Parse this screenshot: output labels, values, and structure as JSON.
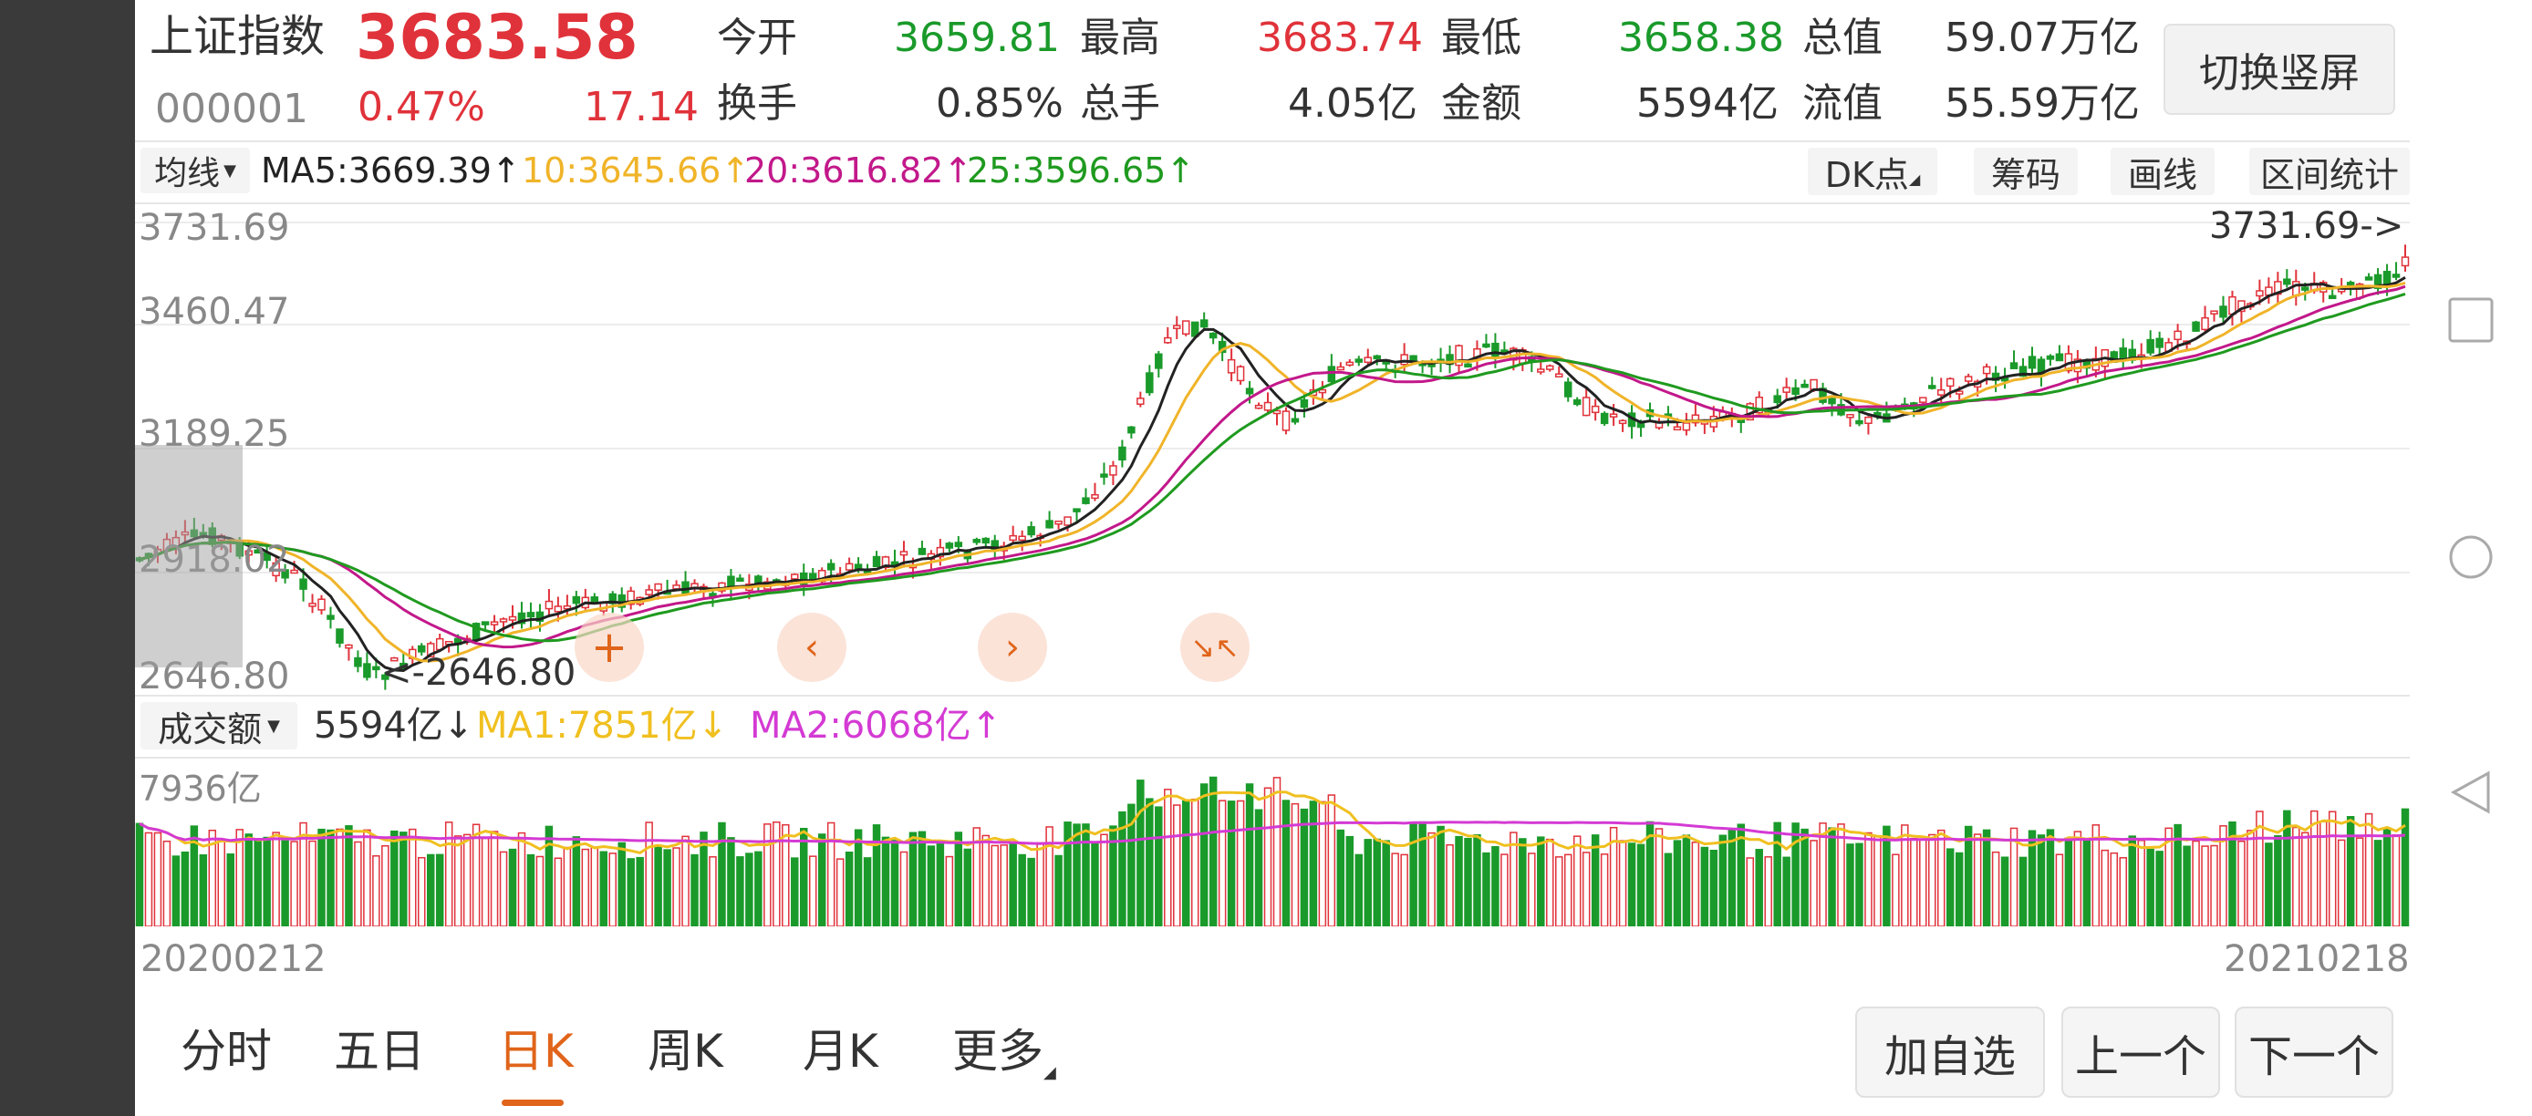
{
  "quote": {
    "name": "上证指数",
    "price": "3683.58",
    "code": "000001",
    "change_pct": "0.47%",
    "change": "17.14",
    "stats": [
      {
        "label": "今开",
        "value": "3659.81",
        "color": "green"
      },
      {
        "label": "最高",
        "value": "3683.74",
        "color": "red"
      },
      {
        "label": "最低",
        "value": "3658.38",
        "color": "green"
      },
      {
        "label": "总值",
        "value": "59.07万亿",
        "color": "dark"
      },
      {
        "label": "换手",
        "value": "0.85%",
        "color": "dark"
      },
      {
        "label": "总手",
        "value": "4.05亿",
        "color": "dark"
      },
      {
        "label": "金额",
        "value": "5594亿",
        "color": "dark"
      },
      {
        "label": "流值",
        "value": "55.59万亿",
        "color": "dark"
      }
    ],
    "switch_button": "切换竖屏"
  },
  "ma_bar": {
    "selector": "均线",
    "items": [
      {
        "text": "MA5:3669.39↑",
        "color": "#222222"
      },
      {
        "text": "10:3645.66↑",
        "color": "#f0b429"
      },
      {
        "text": "20:3616.82↑",
        "color": "#c2188a"
      },
      {
        "text": "25:3596.65↑",
        "color": "#1f9a1f"
      }
    ],
    "buttons": [
      "DK点",
      "筹码",
      "画线",
      "区间统计"
    ]
  },
  "price_chart": {
    "y_labels": [
      "3731.69",
      "3460.47",
      "3189.25",
      "2918.02",
      "2646.80"
    ],
    "max_label": "3731.69->",
    "min_label": "<-2646.80"
  },
  "volume_bar": {
    "selector": "成交额",
    "value": "5594亿↓",
    "ma1": "MA1:7851亿↓",
    "ma2": "MA2:6068亿↑",
    "y_label": "7936亿"
  },
  "dates": {
    "start": "20200212",
    "end": "20210218"
  },
  "tabs": [
    "分时",
    "五日",
    "日K",
    "周K",
    "月K",
    "更多"
  ],
  "active_tab": "日K",
  "bottom_buttons": [
    "加自选",
    "上一个",
    "下一个"
  ],
  "chart_controls": [
    "zoom-in-icon",
    "chevron-left-icon",
    "chevron-right-icon",
    "collapse-icon"
  ],
  "nav_icons": [
    "square-icon",
    "circle-icon",
    "triangle-back-icon"
  ],
  "colors": {
    "up": "#e0323a",
    "down": "#1a9a2a",
    "ma5": "#222222",
    "ma10": "#f0b429",
    "ma20": "#c2188a",
    "ma25": "#1f9a1f",
    "vol_ma1": "#f0c020",
    "vol_ma2": "#d43ad4",
    "accent": "#e0641a"
  }
}
